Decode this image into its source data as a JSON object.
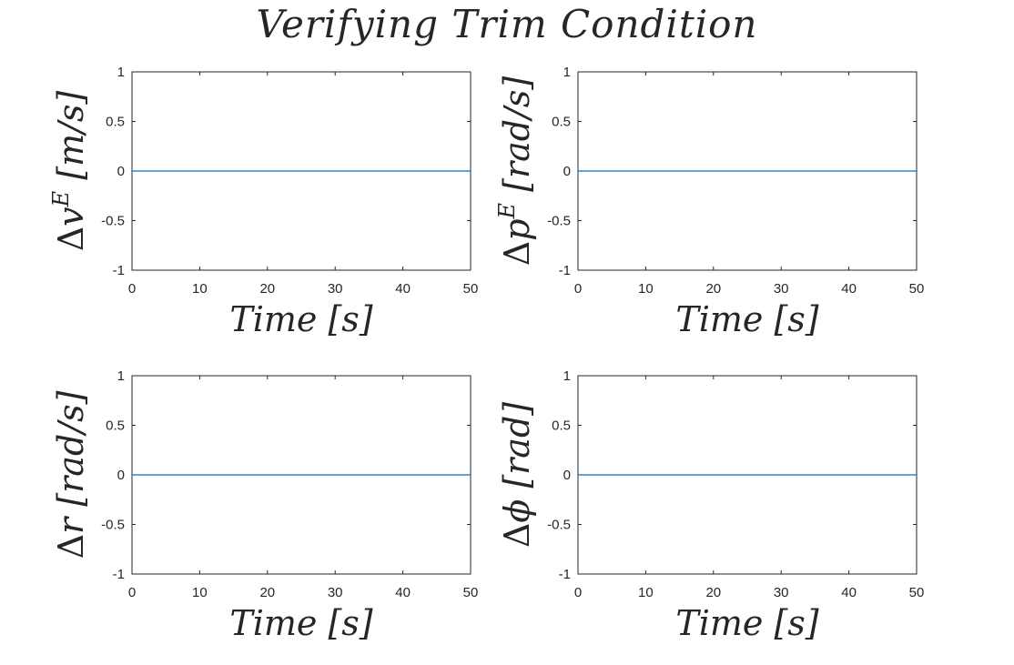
{
  "figure": {
    "title": "Verifying Trim Condition"
  },
  "chart_data": [
    {
      "type": "line",
      "title": "",
      "xlabel": "Time [s]",
      "ylabel": "Δv^E [m/s]",
      "ylabel_parts": {
        "sym": "Δ",
        "var": "v",
        "sup": "E",
        "unit": "[m/s]"
      },
      "xlim": [
        0,
        50
      ],
      "ylim": [
        -1,
        1
      ],
      "xticks": [
        "0",
        "10",
        "20",
        "30",
        "40",
        "50"
      ],
      "yticks": [
        "-1",
        "-0.5",
        "0",
        "0.5",
        "1"
      ],
      "series": [
        {
          "name": "delta_vE",
          "color": "#0072BD",
          "x": [
            0,
            50
          ],
          "y": [
            0,
            0
          ]
        }
      ]
    },
    {
      "type": "line",
      "title": "",
      "xlabel": "Time [s]",
      "ylabel": "Δp^E [rad/s]",
      "ylabel_parts": {
        "sym": "Δ",
        "var": "p",
        "sup": "E",
        "unit": "[rad/s]"
      },
      "xlim": [
        0,
        50
      ],
      "ylim": [
        -1,
        1
      ],
      "xticks": [
        "0",
        "10",
        "20",
        "30",
        "40",
        "50"
      ],
      "yticks": [
        "-1",
        "-0.5",
        "0",
        "0.5",
        "1"
      ],
      "series": [
        {
          "name": "delta_pE",
          "color": "#0072BD",
          "x": [
            0,
            50
          ],
          "y": [
            0,
            0
          ]
        }
      ]
    },
    {
      "type": "line",
      "title": "",
      "xlabel": "Time [s]",
      "ylabel": "Δr [rad/s]",
      "ylabel_parts": {
        "sym": "Δ",
        "var": "r",
        "sup": "",
        "unit": "[rad/s]"
      },
      "xlim": [
        0,
        50
      ],
      "ylim": [
        -1,
        1
      ],
      "xticks": [
        "0",
        "10",
        "20",
        "30",
        "40",
        "50"
      ],
      "yticks": [
        "-1",
        "-0.5",
        "0",
        "0.5",
        "1"
      ],
      "series": [
        {
          "name": "delta_r",
          "color": "#0072BD",
          "x": [
            0,
            50
          ],
          "y": [
            0,
            0
          ]
        }
      ]
    },
    {
      "type": "line",
      "title": "",
      "xlabel": "Time [s]",
      "ylabel": "Δϕ [rad]",
      "ylabel_parts": {
        "sym": "Δ",
        "var": "ϕ",
        "sup": "",
        "unit": "[rad]"
      },
      "xlim": [
        0,
        50
      ],
      "ylim": [
        -1,
        1
      ],
      "xticks": [
        "0",
        "10",
        "20",
        "30",
        "40",
        "50"
      ],
      "yticks": [
        "-1",
        "-0.5",
        "0",
        "0.5",
        "1"
      ],
      "series": [
        {
          "name": "delta_phi",
          "color": "#0072BD",
          "x": [
            0,
            50
          ],
          "y": [
            0,
            0
          ]
        }
      ]
    }
  ]
}
